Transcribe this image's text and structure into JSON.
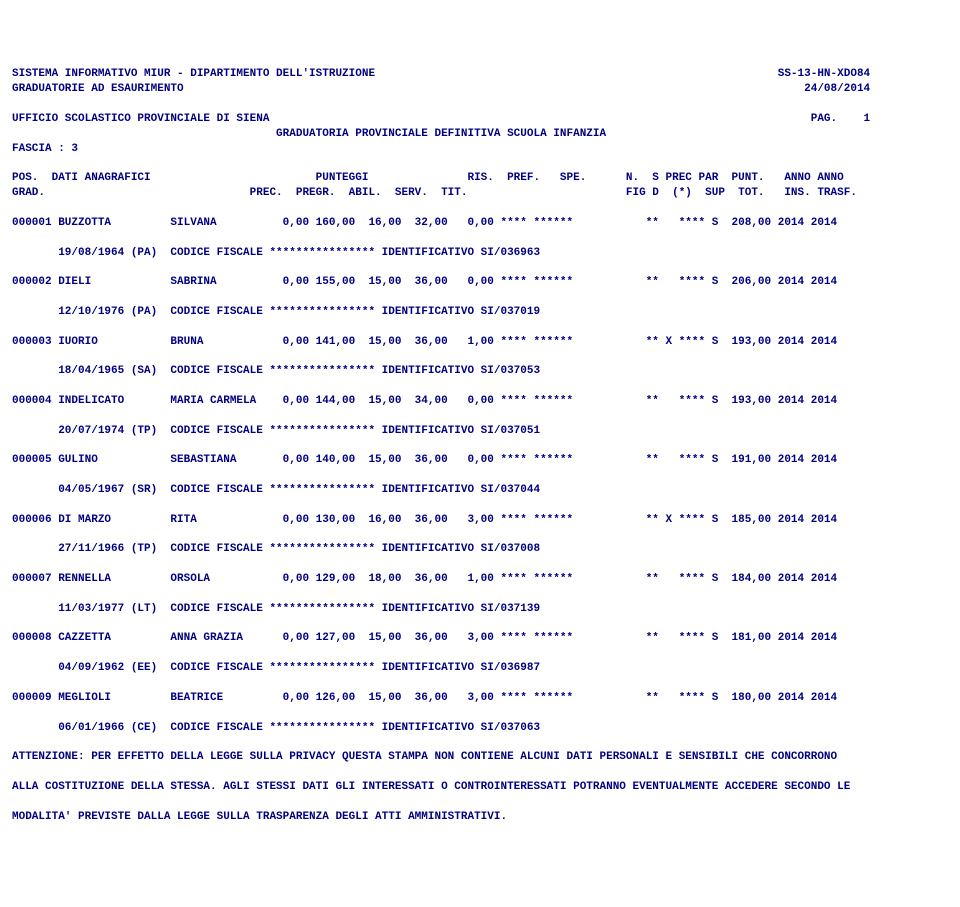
{
  "page": {
    "text_color": "#000080",
    "background_color": "#ffffff",
    "font_family": "Courier New",
    "font_size": 11,
    "font_weight": "bold"
  },
  "header": {
    "line1_left": "SISTEMA INFORMATIVO MIUR - DIPARTIMENTO DELL'ISTRUZIONE",
    "line1_right": "SS-13-HN-XDO84",
    "line2_left": "GRADUATORIE AD ESAURIMENTO",
    "line2_right": "24/08/2014",
    "office_left": "UFFICIO SCOLASTICO PROVINCIALE DI SIENA",
    "office_right": "PAG.    1",
    "title": "GRADUATORIA PROVINCIALE DEFINITIVA SCUOLA INFANZIA",
    "fascia": "FASCIA : 3"
  },
  "columns": {
    "row1": "POS.  DATI ANAGRAFICI                         PUNTEGGI               RIS.  PREF.   SPE.      N.  S PREC PAR  PUNT.   ANNO ANNO",
    "row2": "GRAD.                               PREC.  PREGR.  ABIL.  SERV.  TIT.                        FIG D  (*)  SUP  TOT.   INS. TRASF."
  },
  "rows": [
    {
      "data": "000001 BUZZOTTA         SILVANA          0,00 160,00  16,00  32,00   0,00 **** ******           **   **** S  208,00 2014 2014",
      "detail": "       19/08/1964 (PA)  CODICE FISCALE **************** IDENTIFICATIVO SI/036963"
    },
    {
      "data": "000002 DIELI            SABRINA          0,00 155,00  15,00  36,00   0,00 **** ******           **   **** S  206,00 2014 2014",
      "detail": "       12/10/1976 (PA)  CODICE FISCALE **************** IDENTIFICATIVO SI/037019"
    },
    {
      "data": "000003 IUORIO           BRUNA            0,00 141,00  15,00  36,00   1,00 **** ******           ** X **** S  193,00 2014 2014",
      "detail": "       18/04/1965 (SA)  CODICE FISCALE **************** IDENTIFICATIVO SI/037053"
    },
    {
      "data": "000004 INDELICATO       MARIA CARMELA    0,00 144,00  15,00  34,00   0,00 **** ******           **   **** S  193,00 2014 2014",
      "detail": "       20/07/1974 (TP)  CODICE FISCALE **************** IDENTIFICATIVO SI/037051"
    },
    {
      "data": "000005 GULINO           SEBASTIANA       0,00 140,00  15,00  36,00   0,00 **** ******           **   **** S  191,00 2014 2014",
      "detail": "       04/05/1967 (SR)  CODICE FISCALE **************** IDENTIFICATIVO SI/037044"
    },
    {
      "data": "000006 DI MARZO         RITA             0,00 130,00  16,00  36,00   3,00 **** ******           ** X **** S  185,00 2014 2014",
      "detail": "       27/11/1966 (TP)  CODICE FISCALE **************** IDENTIFICATIVO SI/037008"
    },
    {
      "data": "000007 RENNELLA         ORSOLA           0,00 129,00  18,00  36,00   1,00 **** ******           **   **** S  184,00 2014 2014",
      "detail": "       11/03/1977 (LT)  CODICE FISCALE **************** IDENTIFICATIVO SI/037139"
    },
    {
      "data": "000008 CAZZETTA         ANNA GRAZIA      0,00 127,00  15,00  36,00   3,00 **** ******           **   **** S  181,00 2014 2014",
      "detail": "       04/09/1962 (EE)  CODICE FISCALE **************** IDENTIFICATIVO SI/036987"
    },
    {
      "data": "000009 MEGLIOLI         BEATRICE         0,00 126,00  15,00  36,00   3,00 **** ******           **   **** S  180,00 2014 2014",
      "detail": "       06/01/1966 (CE)  CODICE FISCALE **************** IDENTIFICATIVO SI/037063"
    }
  ],
  "footer": {
    "l1": "ATTENZIONE: PER EFFETTO DELLA LEGGE SULLA PRIVACY QUESTA STAMPA NON CONTIENE ALCUNI DATI PERSONALI E SENSIBILI CHE CONCORRONO",
    "l2": "ALLA COSTITUZIONE DELLA STESSA. AGLI STESSI DATI GLI INTERESSATI O CONTROINTERESSATI POTRANNO EVENTUALMENTE ACCEDERE SECONDO LE",
    "l3": "MODALITA' PREVISTE DALLA LEGGE SULLA TRASPARENZA DEGLI ATTI AMMINISTRATIVI."
  }
}
